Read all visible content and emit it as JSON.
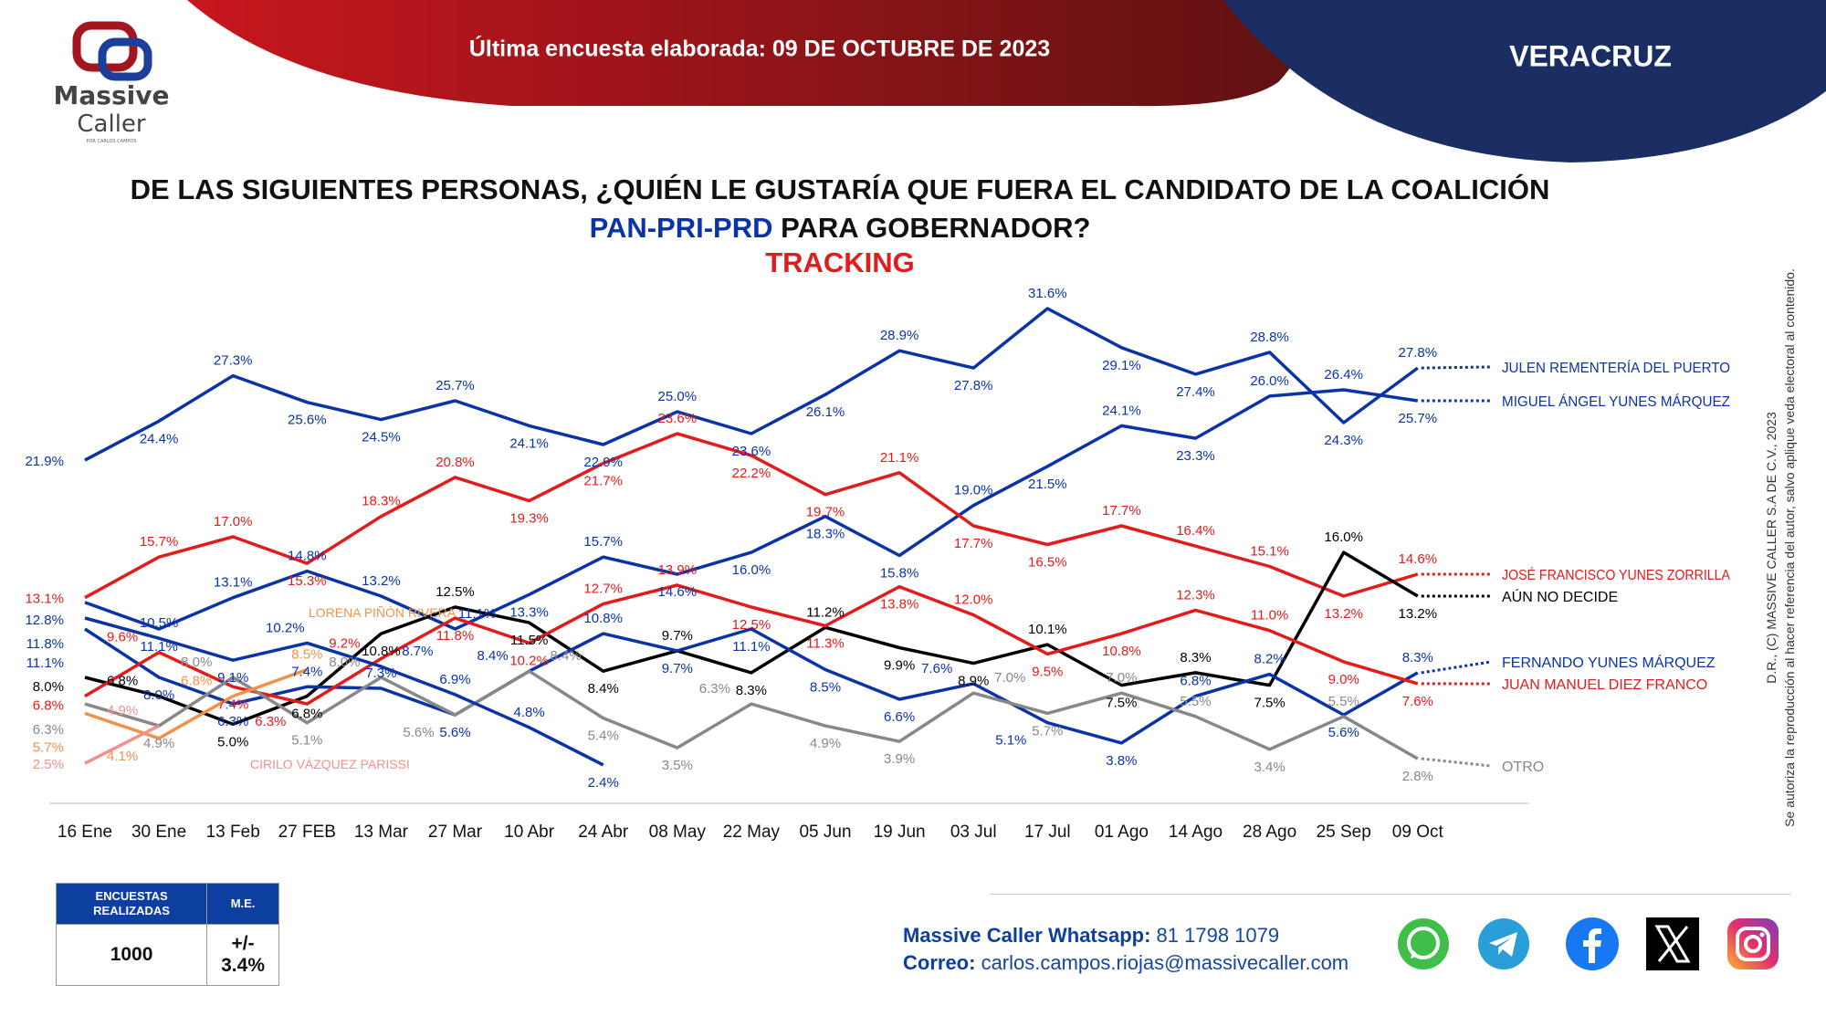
{
  "logo": {
    "line1": "Massive",
    "line2": "Caller",
    "tagline": "POR CARLOS CAMPOS"
  },
  "header": {
    "survey_date": "Última encuesta elaborada: 09 DE OCTUBRE DE 2023",
    "state": "VERACRUZ",
    "colors": {
      "red_band": "#a8161f",
      "blue_band": "#1b2e63"
    }
  },
  "title": {
    "line1": "DE LAS SIGUIENTES PERSONAS, ¿QUIÉN LE GUSTARÍA QUE FUERA EL CANDIDATO DE LA COALICIÓN",
    "line2_coalition": "PAN-PRI-PRD",
    "line2_rest": " PARA GOBERNADOR?",
    "line3": "TRACKING"
  },
  "copyright": {
    "line1": "D.R., (C) MASSIVE CALLER S.A DE C.V., 2023",
    "line2": "Se autoriza la reproducción al hacer referencia del autor, salvo aplique veda electoral al contenido."
  },
  "chart_data": {
    "type": "line",
    "title": "TRACKING",
    "xlabel": "",
    "ylabel": "",
    "unit": "%",
    "ylim": [
      0,
      32
    ],
    "grid": false,
    "legend_placement": "right (end-of-line labels)",
    "categories": [
      "16 Ene",
      "30 Ene",
      "13 Feb",
      "27 FEB",
      "13 Mar",
      "27 Mar",
      "10 Abr",
      "24 Abr",
      "08 May",
      "22 May",
      "05 Jun",
      "19 Jun",
      "03 Jul",
      "17 Jul",
      "01 Ago",
      "14 Ago",
      "28 Ago",
      "25 Sep",
      "09 Oct"
    ],
    "series": [
      {
        "name": "JULEN REMENTERÍA DEL PUERTO",
        "color": "#0a33a8",
        "values": [
          21.9,
          24.4,
          27.3,
          25.6,
          24.5,
          25.7,
          24.1,
          22.9,
          25.0,
          23.6,
          26.1,
          28.9,
          27.8,
          31.6,
          29.1,
          27.4,
          28.8,
          24.3,
          27.8
        ]
      },
      {
        "name": "MIGUEL ÁNGEL YUNES MÁRQUEZ",
        "color": "#0a33a8",
        "values": [
          12.8,
          11.1,
          13.1,
          14.8,
          13.2,
          11.1,
          13.3,
          15.7,
          14.6,
          16.0,
          18.3,
          15.8,
          19.0,
          21.5,
          24.1,
          23.3,
          26.0,
          26.4,
          25.7
        ]
      },
      {
        "name": "JOSÉ FRANCISCO YUNES ZORRILLA",
        "color": "#e31b1b",
        "values": [
          13.1,
          15.7,
          17.0,
          15.3,
          18.3,
          20.8,
          19.3,
          21.7,
          23.6,
          22.2,
          19.7,
          21.1,
          17.7,
          16.5,
          17.7,
          16.4,
          15.1,
          13.2,
          14.6
        ]
      },
      {
        "name": "AÚN NO DECIDE",
        "color": "#000000",
        "values": [
          8.0,
          6.8,
          5.0,
          6.8,
          10.8,
          12.5,
          11.5,
          8.4,
          9.7,
          8.3,
          11.2,
          9.9,
          8.9,
          10.1,
          7.5,
          8.3,
          7.5,
          16.0,
          13.2
        ]
      },
      {
        "name": "FERNANDO YUNES MÁRQUEZ",
        "color": "#0a33a8",
        "values": [
          11.1,
          8.0,
          6.3,
          7.4,
          7.3,
          5.6,
          8.4,
          10.8,
          9.7,
          11.1,
          8.5,
          6.6,
          7.6,
          5.1,
          3.8,
          6.8,
          8.2,
          5.6,
          8.3
        ]
      },
      {
        "name": "JUAN MANUEL DIEZ FRANCO",
        "color": "#e31b1b",
        "values": [
          6.8,
          9.6,
          7.4,
          6.3,
          9.2,
          11.8,
          10.2,
          12.7,
          13.9,
          12.5,
          11.3,
          13.8,
          12.0,
          9.5,
          10.8,
          12.3,
          11.0,
          9.0,
          7.6
        ]
      },
      {
        "name": "OTRO",
        "color": "#888888",
        "values": [
          6.3,
          4.9,
          8.0,
          5.1,
          8.0,
          5.6,
          8.4,
          5.4,
          3.5,
          6.3,
          4.9,
          3.9,
          7.0,
          5.7,
          7.0,
          5.5,
          3.4,
          5.5,
          2.8
        ]
      },
      {
        "name": "",
        "color": "#0a33a8",
        "values": [
          11.8,
          10.5,
          9.1,
          10.2,
          8.7,
          6.9,
          4.8,
          2.4,
          null,
          null,
          null,
          null,
          null,
          null,
          null,
          null,
          null,
          null,
          null
        ]
      },
      {
        "name": "LORENA PIÑÓN RIVERA",
        "color": "#f0924a",
        "values": [
          5.7,
          4.1,
          6.8,
          8.5,
          null,
          null,
          null,
          null,
          null,
          null,
          null,
          null,
          null,
          null,
          null,
          null,
          null,
          null,
          null
        ]
      },
      {
        "name": "CIRILO VÁZQUEZ PARISSI",
        "color": "#f29090",
        "values": [
          2.5,
          4.9,
          null,
          null,
          null,
          null,
          null,
          null,
          null,
          null,
          null,
          null,
          null,
          null,
          null,
          null,
          null,
          null,
          null
        ]
      }
    ]
  },
  "stats": {
    "surveys_label": "ENCUESTAS REALIZADAS",
    "surveys_value": "1000",
    "moe_label": "M.E.",
    "moe_value": "+/- 3.4%"
  },
  "contact": {
    "whatsapp_label": "Massive Caller Whatsapp:",
    "whatsapp_value": " 81 1798 1079",
    "email_label": "Correo:",
    "email_value": " carlos.campos.riojas@massivecaller.com"
  },
  "social_icons": [
    "whatsapp-icon",
    "telegram-icon",
    "facebook-icon",
    "x-icon",
    "instagram-icon"
  ]
}
